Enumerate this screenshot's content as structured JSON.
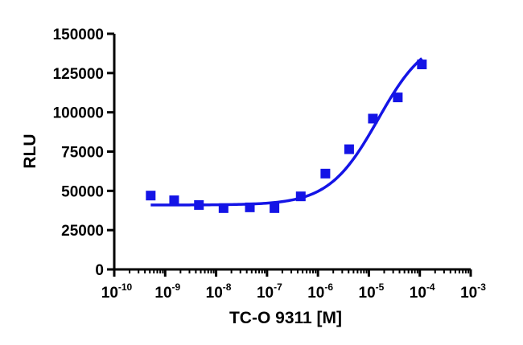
{
  "chart_data": {
    "type": "scatter",
    "title": "",
    "xlabel": "TC-O 9311 [M]",
    "ylabel": "RLU",
    "x_scale": "log",
    "xlim": [
      1e-10,
      0.001
    ],
    "ylim": [
      0,
      150000
    ],
    "x_ticks": [
      {
        "base": "10",
        "exp": "-10",
        "value": 1e-10
      },
      {
        "base": "10",
        "exp": "-9",
        "value": 1e-09
      },
      {
        "base": "10",
        "exp": "-8",
        "value": 1e-08
      },
      {
        "base": "10",
        "exp": "-7",
        "value": 1e-07
      },
      {
        "base": "10",
        "exp": "-6",
        "value": 1e-06
      },
      {
        "base": "10",
        "exp": "-5",
        "value": 1e-05
      },
      {
        "base": "10",
        "exp": "-4",
        "value": 0.0001
      },
      {
        "base": "10",
        "exp": "-3",
        "value": 0.001
      }
    ],
    "y_ticks": [
      {
        "label": "0",
        "value": 0
      },
      {
        "label": "25000",
        "value": 25000
      },
      {
        "label": "50000",
        "value": 50000
      },
      {
        "label": "75000",
        "value": 75000
      },
      {
        "label": "100000",
        "value": 100000
      },
      {
        "label": "125000",
        "value": 125000
      },
      {
        "label": "150000",
        "value": 150000
      }
    ],
    "grid": false,
    "series": [
      {
        "color": "#1414e6",
        "marker": "square",
        "points": [
          {
            "x": 5.2e-10,
            "y": 47000
          },
          {
            "x": 1.5e-09,
            "y": 44000
          },
          {
            "x": 4.6e-09,
            "y": 41000
          },
          {
            "x": 1.4e-08,
            "y": 39000
          },
          {
            "x": 4.6e-08,
            "y": 39500
          },
          {
            "x": 1.4e-07,
            "y": 39000
          },
          {
            "x": 4.6e-07,
            "y": 46500
          },
          {
            "x": 1.4e-06,
            "y": 61000
          },
          {
            "x": 4.1e-06,
            "y": 76500
          },
          {
            "x": 1.2e-05,
            "y": 96000
          },
          {
            "x": 3.7e-05,
            "y": 109500
          },
          {
            "x": 0.00011,
            "y": 130500
          }
        ]
      }
    ],
    "fit_curve": {
      "color": "#1414e6",
      "model": "4PL",
      "bottom": 41000,
      "top": 150000,
      "log_ec50": -4.82,
      "hill": 0.9,
      "x_range": [
        5.2e-10,
        0.00011
      ]
    }
  }
}
